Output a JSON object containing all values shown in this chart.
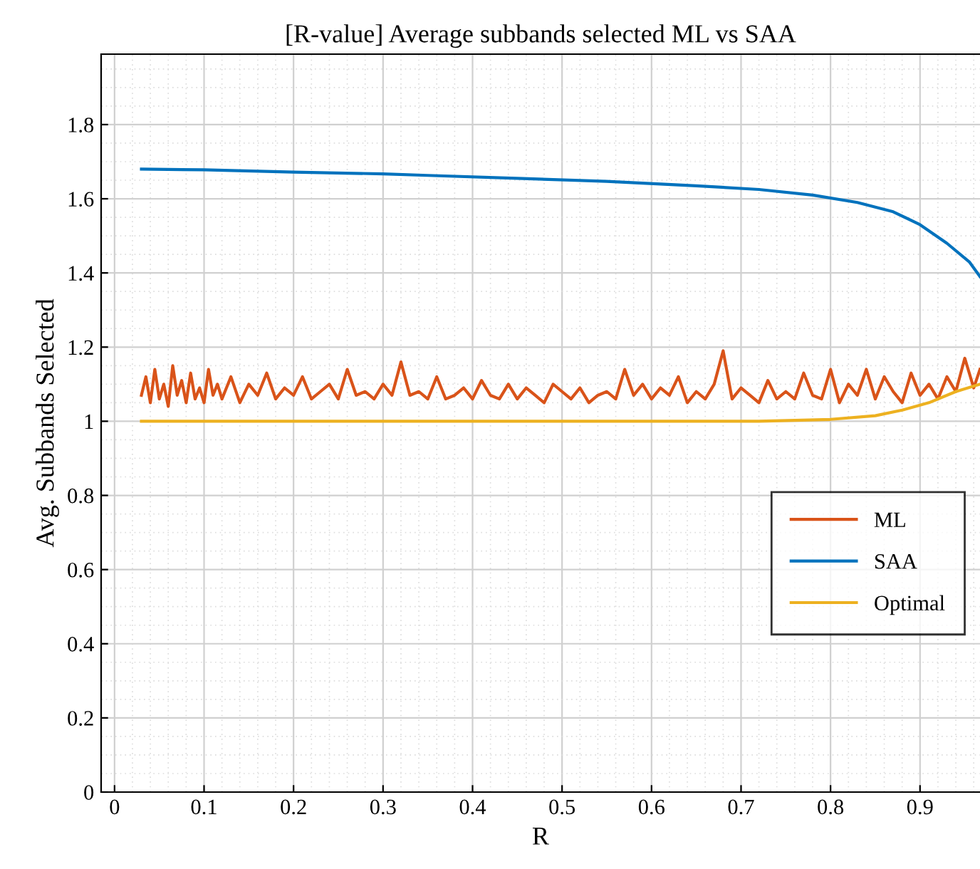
{
  "chart_data": {
    "type": "line",
    "title": "[R-value] Average subbands selected ML vs SAA",
    "xlabel": "R",
    "ylabel": "Avg. Subbands Selected",
    "xlim": [
      -0.015,
      0.967
    ],
    "ylim": [
      0,
      1.99
    ],
    "xticks": [
      0,
      0.1,
      0.2,
      0.3,
      0.4,
      0.5,
      0.6,
      0.7,
      0.8,
      0.9
    ],
    "yticks": [
      0,
      0.2,
      0.4,
      0.6,
      0.8,
      1,
      1.2,
      1.4,
      1.6,
      1.8
    ],
    "grid": true,
    "legend": "right",
    "line_style": "solid",
    "marker": "none",
    "series": [
      {
        "name": "ML",
        "color": "#d95319",
        "x": [
          0.03,
          0.035,
          0.04,
          0.045,
          0.05,
          0.055,
          0.06,
          0.065,
          0.07,
          0.075,
          0.08,
          0.085,
          0.09,
          0.095,
          0.1,
          0.105,
          0.11,
          0.115,
          0.12,
          0.13,
          0.14,
          0.15,
          0.16,
          0.17,
          0.18,
          0.19,
          0.2,
          0.21,
          0.22,
          0.23,
          0.24,
          0.25,
          0.26,
          0.27,
          0.28,
          0.29,
          0.3,
          0.31,
          0.32,
          0.33,
          0.34,
          0.35,
          0.36,
          0.37,
          0.38,
          0.39,
          0.4,
          0.41,
          0.42,
          0.43,
          0.44,
          0.45,
          0.46,
          0.47,
          0.48,
          0.49,
          0.5,
          0.51,
          0.52,
          0.53,
          0.54,
          0.55,
          0.56,
          0.57,
          0.58,
          0.59,
          0.6,
          0.61,
          0.62,
          0.63,
          0.64,
          0.65,
          0.66,
          0.67,
          0.68,
          0.69,
          0.7,
          0.71,
          0.72,
          0.73,
          0.74,
          0.75,
          0.76,
          0.77,
          0.78,
          0.79,
          0.8,
          0.81,
          0.82,
          0.83,
          0.84,
          0.85,
          0.86,
          0.87,
          0.88,
          0.89,
          0.9,
          0.91,
          0.92,
          0.93,
          0.94,
          0.95,
          0.96,
          0.967
        ],
        "values": [
          1.07,
          1.12,
          1.05,
          1.14,
          1.06,
          1.1,
          1.04,
          1.15,
          1.07,
          1.11,
          1.05,
          1.13,
          1.06,
          1.09,
          1.05,
          1.14,
          1.07,
          1.1,
          1.06,
          1.12,
          1.05,
          1.1,
          1.07,
          1.13,
          1.06,
          1.09,
          1.07,
          1.12,
          1.06,
          1.08,
          1.1,
          1.06,
          1.14,
          1.07,
          1.08,
          1.06,
          1.1,
          1.07,
          1.16,
          1.07,
          1.08,
          1.06,
          1.12,
          1.06,
          1.07,
          1.09,
          1.06,
          1.11,
          1.07,
          1.06,
          1.1,
          1.06,
          1.09,
          1.07,
          1.05,
          1.1,
          1.08,
          1.06,
          1.09,
          1.05,
          1.07,
          1.08,
          1.06,
          1.14,
          1.07,
          1.1,
          1.06,
          1.09,
          1.07,
          1.12,
          1.05,
          1.08,
          1.06,
          1.1,
          1.19,
          1.06,
          1.09,
          1.07,
          1.05,
          1.11,
          1.06,
          1.08,
          1.06,
          1.13,
          1.07,
          1.06,
          1.14,
          1.05,
          1.1,
          1.07,
          1.14,
          1.06,
          1.12,
          1.08,
          1.05,
          1.13,
          1.07,
          1.1,
          1.06,
          1.12,
          1.08,
          1.17,
          1.09,
          1.14
        ]
      },
      {
        "name": "SAA",
        "color": "#0072bd",
        "x": [
          0.03,
          0.1,
          0.2,
          0.3,
          0.35,
          0.45,
          0.55,
          0.65,
          0.72,
          0.78,
          0.83,
          0.87,
          0.9,
          0.93,
          0.955,
          0.967
        ],
        "values": [
          1.68,
          1.678,
          1.672,
          1.667,
          1.663,
          1.655,
          1.647,
          1.635,
          1.625,
          1.61,
          1.59,
          1.565,
          1.53,
          1.48,
          1.43,
          1.39
        ]
      },
      {
        "name": "Optimal",
        "color": "#edb120",
        "x": [
          0.03,
          0.72,
          0.8,
          0.85,
          0.88,
          0.91,
          0.94,
          0.967
        ],
        "values": [
          1.0,
          1.0,
          1.005,
          1.015,
          1.03,
          1.05,
          1.08,
          1.1
        ]
      }
    ]
  }
}
